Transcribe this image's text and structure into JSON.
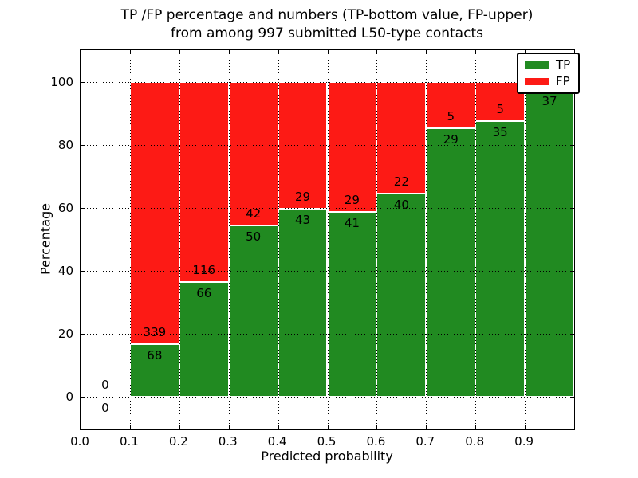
{
  "figure": {
    "title_line1": "TP /FP percentage and numbers (TP-bottom value, FP-upper)",
    "title_line2": "from among 997 submitted L50-type contacts",
    "xlabel": "Predicted probability",
    "ylabel": "Percentage"
  },
  "legend": {
    "position": "upper-right",
    "items": [
      {
        "label": "TP",
        "color": "#218a21"
      },
      {
        "label": "FP",
        "color": "#fd1a15"
      }
    ]
  },
  "chart_data": {
    "type": "bar",
    "subtype": "stacked-percentage-histogram",
    "title": "TP /FP percentage and numbers (TP-bottom value, FP-upper) from among 997 submitted L50-type contacts",
    "xlabel": "Predicted probability",
    "ylabel": "Percentage",
    "xlim": [
      0.0,
      1.0
    ],
    "ylim": [
      -10.5,
      110
    ],
    "grid": true,
    "grid_style": "dotted",
    "grid_above_bars": true,
    "legend_position": "upper right",
    "total_contacts": 997,
    "colors": {
      "tp": "#218a21",
      "fp": "#fd1a15",
      "bar_edge": "#ffffff",
      "axis": "#000000"
    },
    "yticks": [
      0,
      20,
      40,
      60,
      80,
      100
    ],
    "ytick_labels": [
      "0",
      "20",
      "40",
      "60",
      "80",
      "100"
    ],
    "xtick_values": [
      0.0,
      0.1,
      0.2,
      0.3,
      0.4,
      0.5,
      0.6,
      0.7,
      0.8,
      0.9
    ],
    "xtick_labels": [
      "0.0",
      "0.1",
      "0.2",
      "0.3",
      "0.4",
      "0.5",
      "0.6",
      "0.7",
      "0.8",
      "0.9"
    ],
    "bins": [
      {
        "x_start": 0.0,
        "x_end": 0.1,
        "tp": 0,
        "fp": 0,
        "fp_label_visible": true
      },
      {
        "x_start": 0.1,
        "x_end": 0.2,
        "tp": 68,
        "fp": 339,
        "fp_label_visible": true
      },
      {
        "x_start": 0.2,
        "x_end": 0.3,
        "tp": 66,
        "fp": 116,
        "fp_label_visible": true
      },
      {
        "x_start": 0.3,
        "x_end": 0.4,
        "tp": 50,
        "fp": 42,
        "fp_label_visible": true
      },
      {
        "x_start": 0.4,
        "x_end": 0.5,
        "tp": 43,
        "fp": 29,
        "fp_label_visible": true
      },
      {
        "x_start": 0.5,
        "x_end": 0.6,
        "tp": 41,
        "fp": 29,
        "fp_label_visible": true
      },
      {
        "x_start": 0.6,
        "x_end": 0.7,
        "tp": 40,
        "fp": 22,
        "fp_label_visible": true
      },
      {
        "x_start": 0.7,
        "x_end": 0.8,
        "tp": 29,
        "fp": 5,
        "fp_label_visible": true
      },
      {
        "x_start": 0.8,
        "x_end": 0.9,
        "tp": 35,
        "fp": 5,
        "fp_label_visible": true
      },
      {
        "x_start": 0.9,
        "x_end": 1.0,
        "tp": 37,
        "fp": 1,
        "fp_label_visible": false
      }
    ]
  }
}
